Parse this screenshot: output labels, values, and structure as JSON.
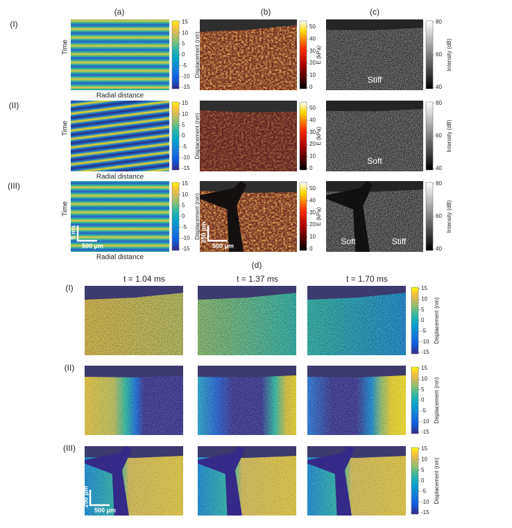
{
  "panels": {
    "a": "(a)",
    "b": "(b)",
    "c": "(c)",
    "d": "(d)"
  },
  "rows": [
    "(I)",
    "(II)",
    "(III)"
  ],
  "axes": {
    "time": "Time",
    "radial": "Radial distance"
  },
  "colorbars": {
    "displacement": {
      "label": "Displacement (nm)",
      "ticks": [
        15,
        10,
        5,
        0,
        -5,
        -10,
        -15
      ]
    },
    "elasticity": {
      "label": "E (kPa)",
      "ticks": [
        50,
        40,
        30,
        20,
        10,
        0
      ]
    },
    "intensity": {
      "label": "Intensity (dB)",
      "ticks": [
        80,
        60,
        40
      ]
    }
  },
  "annotations": {
    "c_I": "Stiff",
    "c_II": "Soft",
    "c_III_left": "Soft",
    "c_III_right": "Stiff"
  },
  "scale_bars": {
    "a": {
      "time": "5 ms",
      "length": "500 μm"
    },
    "b": {
      "depth": "250 μm",
      "length": "500 μm"
    },
    "d": {
      "depth": "250 μm",
      "length": "500 μm"
    }
  },
  "times": [
    "t = 1.04 ms",
    "t = 1.37 ms",
    "t = 1.70 ms"
  ]
}
